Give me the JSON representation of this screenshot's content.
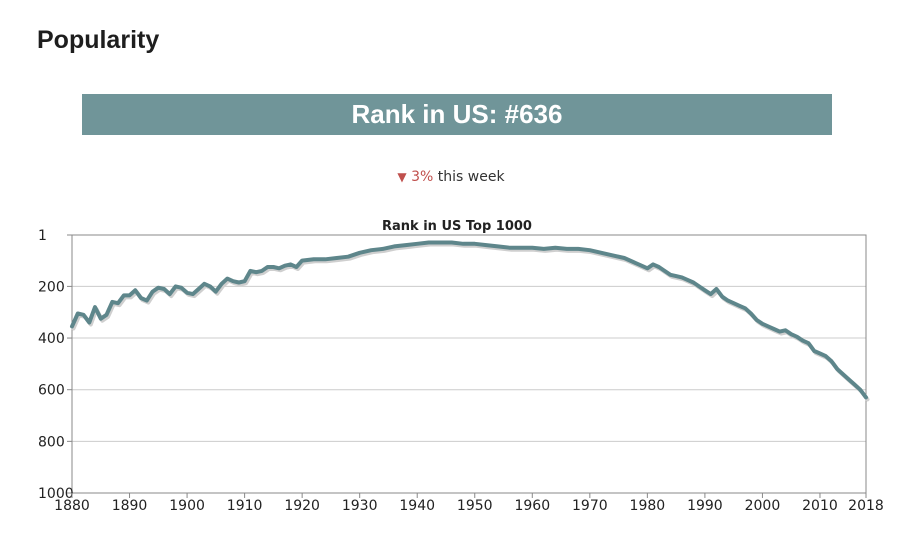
{
  "section": {
    "title": "Popularity"
  },
  "banner": {
    "text": "Rank in US: #636"
  },
  "trend": {
    "arrow": "▼",
    "percent": "3%",
    "suffix": "this week"
  },
  "colors": {
    "banner_bg": "#709599",
    "line": "#5e868b",
    "down": "#c0504d"
  },
  "chart_data": {
    "type": "line",
    "title": "Rank in US Top 1000",
    "xlabel": "",
    "ylabel": "",
    "x_ticks": [
      1880,
      1890,
      1900,
      1910,
      1920,
      1930,
      1940,
      1950,
      1960,
      1970,
      1980,
      1990,
      2000,
      2010,
      2018
    ],
    "y_ticks": [
      1,
      200,
      400,
      600,
      800,
      1000
    ],
    "xlim": [
      1880,
      2018
    ],
    "ylim": [
      1,
      1000
    ],
    "y_inverted": true,
    "grid": true,
    "series": [
      {
        "x": [
          1880,
          1881,
          1882,
          1883,
          1884,
          1885,
          1886,
          1887,
          1888,
          1889,
          1890,
          1891,
          1892,
          1893,
          1894,
          1895,
          1896,
          1897,
          1898,
          1899,
          1900,
          1901,
          1902,
          1903,
          1904,
          1905,
          1906,
          1907,
          1908,
          1909,
          1910,
          1911,
          1912,
          1913,
          1914,
          1915,
          1916,
          1917,
          1918,
          1919,
          1920,
          1922,
          1924,
          1926,
          1928,
          1930,
          1932,
          1934,
          1936,
          1938,
          1940,
          1942,
          1944,
          1946,
          1948,
          1950,
          1952,
          1954,
          1956,
          1958,
          1960,
          1962,
          1964,
          1966,
          1968,
          1970,
          1972,
          1974,
          1976,
          1978,
          1979,
          1980,
          1981,
          1982,
          1983,
          1984,
          1985,
          1986,
          1987,
          1988,
          1989,
          1990,
          1991,
          1992,
          1993,
          1994,
          1995,
          1996,
          1997,
          1998,
          1999,
          2000,
          2001,
          2002,
          2003,
          2004,
          2005,
          2006,
          2007,
          2008,
          2009,
          2010,
          2011,
          2012,
          2013,
          2014,
          2015,
          2016,
          2017,
          2018
        ],
        "values": [
          355,
          305,
          310,
          340,
          280,
          325,
          310,
          260,
          265,
          235,
          235,
          215,
          245,
          255,
          220,
          205,
          210,
          230,
          200,
          205,
          225,
          230,
          210,
          190,
          200,
          220,
          190,
          170,
          180,
          185,
          180,
          140,
          145,
          140,
          125,
          125,
          130,
          120,
          115,
          125,
          100,
          95,
          95,
          90,
          85,
          70,
          60,
          55,
          45,
          40,
          35,
          30,
          30,
          30,
          35,
          35,
          40,
          45,
          50,
          50,
          50,
          55,
          50,
          55,
          55,
          60,
          70,
          80,
          90,
          110,
          120,
          130,
          115,
          125,
          140,
          155,
          160,
          165,
          175,
          185,
          200,
          215,
          230,
          210,
          240,
          255,
          265,
          275,
          285,
          305,
          330,
          345,
          355,
          365,
          375,
          370,
          385,
          395,
          410,
          420,
          450,
          460,
          470,
          490,
          520,
          540,
          560,
          580,
          600,
          630
        ]
      }
    ]
  }
}
